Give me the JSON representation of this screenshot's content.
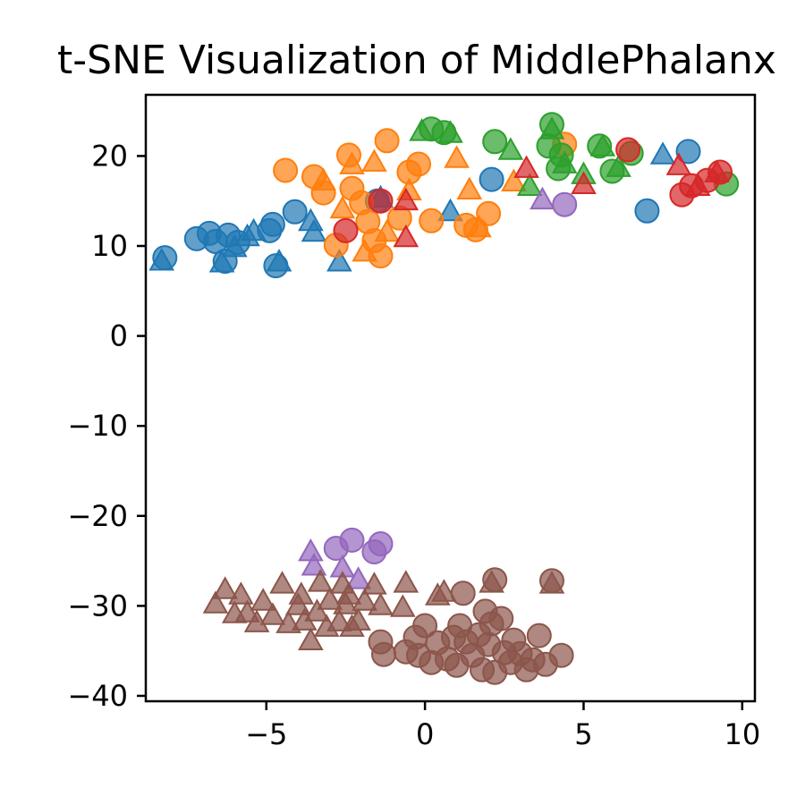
{
  "chart_data": {
    "type": "scatter",
    "title": "t-SNE Visualization of MiddlePhalanx",
    "xlabel": "",
    "ylabel": "",
    "xlim": [
      -8.8,
      10.4
    ],
    "ylim": [
      -40.6,
      26.8
    ],
    "x_ticks": [
      -5,
      0,
      5,
      10
    ],
    "x_tick_labels": [
      "−5",
      "0",
      "5",
      "10"
    ],
    "y_ticks": [
      -40,
      -30,
      -20,
      -10,
      0,
      10,
      20
    ],
    "y_tick_labels": [
      "−40",
      "−30",
      "−20",
      "−10",
      "0",
      "10",
      "20"
    ],
    "grid": false,
    "legend": "none",
    "marker_styles": [
      "circle",
      "triangle"
    ],
    "colors": {
      "c0": "#1f77b4",
      "c1": "#ff7f0e",
      "c2": "#2ca02c",
      "c3": "#d62728",
      "c4": "#9467bd",
      "c5": "#8c564b"
    },
    "series": [
      {
        "color": "c0",
        "circle": [
          [
            -8.2,
            8.7
          ],
          [
            -7.2,
            10.8
          ],
          [
            -6.8,
            11.4
          ],
          [
            -6.6,
            10.5
          ],
          [
            -6.3,
            8.3
          ],
          [
            -6.2,
            11.2
          ],
          [
            -5.9,
            10.4
          ],
          [
            -4.9,
            11.7
          ],
          [
            -4.8,
            12.4
          ],
          [
            -4.7,
            7.8
          ],
          [
            -4.1,
            13.8
          ],
          [
            -1.5,
            15.0
          ],
          [
            2.1,
            17.4
          ],
          [
            7.0,
            13.9
          ],
          [
            8.3,
            20.5
          ]
        ],
        "triangle": [
          [
            -8.3,
            8.2
          ],
          [
            -6.4,
            8.0
          ],
          [
            -6.0,
            9.7
          ],
          [
            -5.6,
            10.9
          ],
          [
            -5.4,
            11.5
          ],
          [
            -4.6,
            8.1
          ],
          [
            -3.6,
            12.6
          ],
          [
            -3.5,
            11.4
          ],
          [
            -2.7,
            8.1
          ],
          [
            -1.4,
            15.2
          ],
          [
            0.8,
            13.7
          ],
          [
            7.5,
            20.0
          ]
        ]
      },
      {
        "color": "c1",
        "circle": [
          [
            -4.4,
            18.4
          ],
          [
            -3.5,
            17.7
          ],
          [
            -3.2,
            15.9
          ],
          [
            -2.8,
            10.1
          ],
          [
            -2.4,
            20.1
          ],
          [
            -2.3,
            16.4
          ],
          [
            -2.0,
            14.8
          ],
          [
            -1.8,
            12.7
          ],
          [
            -1.6,
            10.6
          ],
          [
            -1.4,
            8.9
          ],
          [
            -1.2,
            21.7
          ],
          [
            -0.8,
            13.1
          ],
          [
            -0.5,
            18.2
          ],
          [
            -0.2,
            19.1
          ],
          [
            0.2,
            12.8
          ],
          [
            1.3,
            12.3
          ],
          [
            1.6,
            11.8
          ],
          [
            2.0,
            13.6
          ],
          [
            4.4,
            21.3
          ]
        ],
        "triangle": [
          [
            -3.2,
            17.1
          ],
          [
            -2.6,
            14.0
          ],
          [
            -2.3,
            18.9
          ],
          [
            -1.9,
            9.2
          ],
          [
            -1.6,
            19.2
          ],
          [
            -1.2,
            11.4
          ],
          [
            -0.5,
            16.0
          ],
          [
            1.0,
            19.6
          ],
          [
            1.4,
            16.1
          ],
          [
            1.7,
            11.9
          ],
          [
            2.8,
            17.0
          ]
        ]
      },
      {
        "color": "c2",
        "circle": [
          [
            0.2,
            23.0
          ],
          [
            0.6,
            22.6
          ],
          [
            2.2,
            21.6
          ],
          [
            3.9,
            21.1
          ],
          [
            4.0,
            23.5
          ],
          [
            4.2,
            18.6
          ],
          [
            4.3,
            20.1
          ],
          [
            5.5,
            21.1
          ],
          [
            5.9,
            18.3
          ],
          [
            6.5,
            20.3
          ],
          [
            9.5,
            16.9
          ]
        ],
        "triangle": [
          [
            -0.1,
            22.6
          ],
          [
            0.8,
            22.4
          ],
          [
            2.7,
            20.5
          ],
          [
            3.3,
            16.5
          ],
          [
            4.0,
            22.8
          ],
          [
            4.4,
            19.0
          ],
          [
            5.0,
            17.8
          ],
          [
            5.6,
            20.9
          ],
          [
            6.1,
            18.6
          ]
        ]
      },
      {
        "color": "c3",
        "circle": [
          [
            -2.5,
            11.7
          ],
          [
            -1.4,
            15.0
          ],
          [
            6.4,
            20.7
          ],
          [
            8.1,
            15.7
          ],
          [
            8.4,
            16.7
          ],
          [
            8.9,
            17.3
          ],
          [
            9.3,
            18.2
          ]
        ],
        "triangle": [
          [
            -0.6,
            14.9
          ],
          [
            -0.6,
            10.8
          ],
          [
            3.2,
            18.5
          ],
          [
            5.0,
            16.7
          ],
          [
            8.0,
            18.8
          ],
          [
            8.6,
            16.5
          ],
          [
            9.2,
            18.0
          ]
        ]
      },
      {
        "color": "c4",
        "circle": [
          [
            -2.8,
            -23.6
          ],
          [
            -2.3,
            -22.7
          ],
          [
            -1.6,
            -24.0
          ],
          [
            -1.4,
            -23.1
          ],
          [
            4.4,
            14.6
          ]
        ],
        "triangle": [
          [
            -3.6,
            -24.1
          ],
          [
            -3.5,
            -25.7
          ],
          [
            -2.6,
            -25.9
          ],
          [
            -2.1,
            -27.2
          ],
          [
            3.7,
            15.0
          ]
        ]
      },
      {
        "color": "c5",
        "circle": [
          [
            -1.4,
            -34.0
          ],
          [
            -1.3,
            -35.4
          ],
          [
            -0.6,
            -35.1
          ],
          [
            -0.3,
            -33.5
          ],
          [
            -0.2,
            -35.5
          ],
          [
            0.0,
            -32.2
          ],
          [
            0.2,
            -36.3
          ],
          [
            0.4,
            -34.1
          ],
          [
            0.7,
            -35.9
          ],
          [
            0.9,
            -33.5
          ],
          [
            1.0,
            -36.6
          ],
          [
            1.1,
            -32.2
          ],
          [
            1.2,
            -28.6
          ],
          [
            1.3,
            -34.0
          ],
          [
            1.5,
            -35.5
          ],
          [
            1.7,
            -33.2
          ],
          [
            1.8,
            -37.1
          ],
          [
            1.9,
            -30.6
          ],
          [
            2.0,
            -34.3
          ],
          [
            2.1,
            -32.0
          ],
          [
            2.2,
            -27.1
          ],
          [
            2.2,
            -37.4
          ],
          [
            2.4,
            -31.4
          ],
          [
            2.5,
            -35.2
          ],
          [
            2.7,
            -36.3
          ],
          [
            2.8,
            -33.8
          ],
          [
            3.0,
            -35.3
          ],
          [
            3.2,
            -37.1
          ],
          [
            3.4,
            -36.0
          ],
          [
            3.6,
            -33.3
          ],
          [
            3.8,
            -36.5
          ],
          [
            4.0,
            -27.2
          ],
          [
            4.3,
            -35.5
          ]
        ],
        "triangle": [
          [
            -6.6,
            -29.9
          ],
          [
            -6.3,
            -28.3
          ],
          [
            -6.0,
            -31.0
          ],
          [
            -5.8,
            -28.9
          ],
          [
            -5.6,
            -30.9
          ],
          [
            -5.3,
            -32.0
          ],
          [
            -5.1,
            -29.6
          ],
          [
            -4.8,
            -31.2
          ],
          [
            -4.5,
            -27.7
          ],
          [
            -4.3,
            -32.1
          ],
          [
            -4.0,
            -30.1
          ],
          [
            -3.9,
            -28.9
          ],
          [
            -3.8,
            -31.8
          ],
          [
            -3.6,
            -34.0
          ],
          [
            -3.4,
            -30.8
          ],
          [
            -3.3,
            -27.5
          ],
          [
            -3.1,
            -32.5
          ],
          [
            -3.0,
            -29.5
          ],
          [
            -2.7,
            -31.9
          ],
          [
            -2.6,
            -27.7
          ],
          [
            -2.5,
            -30.0
          ],
          [
            -2.4,
            -28.9
          ],
          [
            -2.3,
            -32.5
          ],
          [
            -2.1,
            -31.8
          ],
          [
            -1.9,
            -29.6
          ],
          [
            -1.6,
            -27.8
          ],
          [
            -1.4,
            -30.1
          ],
          [
            -0.6,
            -27.6
          ],
          [
            -0.7,
            -30.3
          ],
          [
            0.4,
            -29.0
          ],
          [
            0.6,
            -28.6
          ],
          [
            2.1,
            -27.6
          ],
          [
            4.0,
            -27.7
          ]
        ]
      }
    ]
  }
}
